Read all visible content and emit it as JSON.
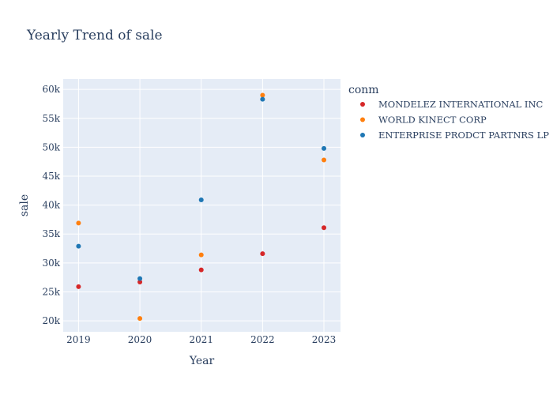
{
  "chart_data": {
    "type": "scatter",
    "title": "Yearly Trend of sale",
    "xlabel": "Year",
    "ylabel": "sale",
    "x": [
      2019,
      2020,
      2021,
      2022,
      2023
    ],
    "x_tick_labels": [
      "2019",
      "2020",
      "2021",
      "2022",
      "2023"
    ],
    "xlim": [
      2018.75,
      2023.27
    ],
    "y_ticks": [
      20000,
      25000,
      30000,
      35000,
      40000,
      45000,
      50000,
      55000,
      60000
    ],
    "y_tick_labels": [
      "20k",
      "25k",
      "30k",
      "35k",
      "40k",
      "45k",
      "50k",
      "55k",
      "60k"
    ],
    "ylim": [
      18100,
      61800
    ],
    "grid": true,
    "legend_title": "conm",
    "legend_position": "right",
    "series": [
      {
        "name": "MONDELEZ INTERNATIONAL INC",
        "color": "#d62728",
        "values": [
          25900,
          26700,
          28800,
          31600,
          36100
        ]
      },
      {
        "name": "WORLD KINECT CORP",
        "color": "#ff7f0e",
        "values": [
          36900,
          20400,
          31400,
          59000,
          47800
        ]
      },
      {
        "name": "ENTERPRISE PRODCT PARTNRS LP",
        "color": "#1f77b4",
        "values": [
          32900,
          27300,
          40900,
          58300,
          49800
        ]
      }
    ]
  }
}
